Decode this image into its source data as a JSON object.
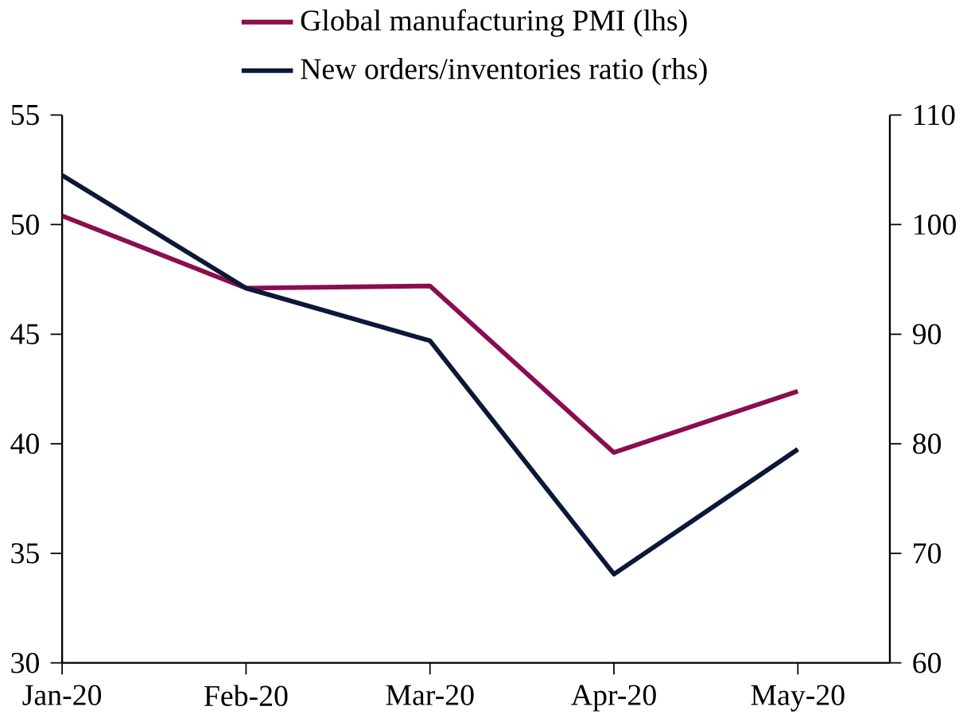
{
  "chart_data": {
    "type": "line",
    "categories": [
      "Jan-20",
      "Feb-20",
      "Mar-20",
      "Apr-20",
      "May-20"
    ],
    "series": [
      {
        "name": "Global manufacturing PMI (lhs)",
        "color": "#8b0d4f",
        "values": [
          50.4,
          47.1,
          47.2,
          39.6,
          42.4
        ]
      },
      {
        "name": "New orders/inventories ratio (rhs)",
        "color": "#0b1838",
        "values": [
          104.5,
          94.2,
          89.4,
          68.1,
          79.5
        ],
        "axis": "y2"
      }
    ],
    "ylim": [
      30,
      55
    ],
    "yticks": [
      30,
      35,
      40,
      45,
      50,
      55
    ],
    "y2lim": [
      60,
      110
    ],
    "y2ticks": [
      60,
      70,
      80,
      90,
      100,
      110
    ],
    "legend": "top",
    "grid": false,
    "marker": "none",
    "line_style": "solid"
  }
}
